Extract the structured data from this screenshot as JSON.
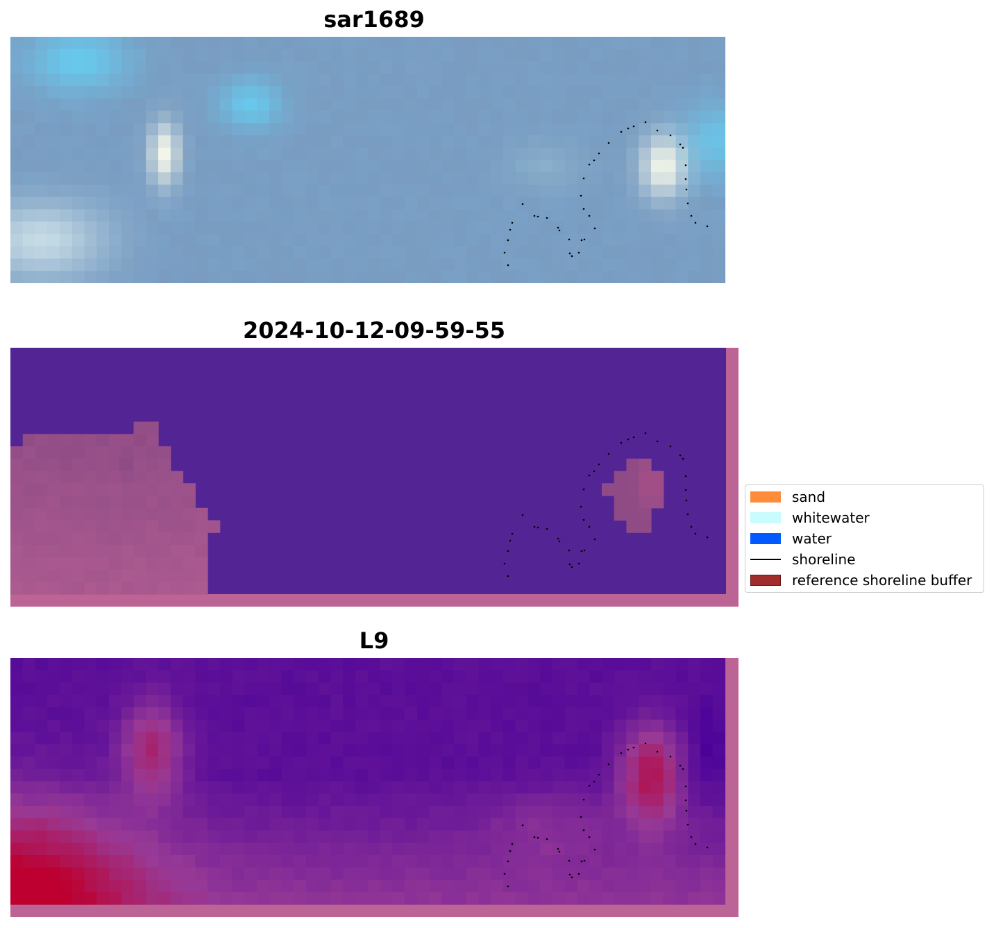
{
  "panels": [
    {
      "title": "sar1689"
    },
    {
      "title": "2024-10-12-09-59-55"
    },
    {
      "title": "L9"
    }
  ],
  "legend": {
    "items": [
      {
        "label": "sand",
        "color": "#ff8c3a",
        "kind": "patch"
      },
      {
        "label": "whitewater",
        "color": "#c8fcff",
        "kind": "patch"
      },
      {
        "label": "water",
        "color": "#005aff",
        "kind": "patch"
      },
      {
        "label": "shoreline",
        "color": "#000000",
        "kind": "line"
      },
      {
        "label": "reference shoreline buffer",
        "color": "#a02c2c",
        "kind": "patch"
      }
    ]
  },
  "colors": {
    "rgb_water": "#7aa0c6",
    "classified_background": "#532494",
    "classified_buffer": "#bc6496",
    "classified_land": "#8e4b85",
    "index_low": "#4a0299",
    "index_high": "#bd0030"
  }
}
